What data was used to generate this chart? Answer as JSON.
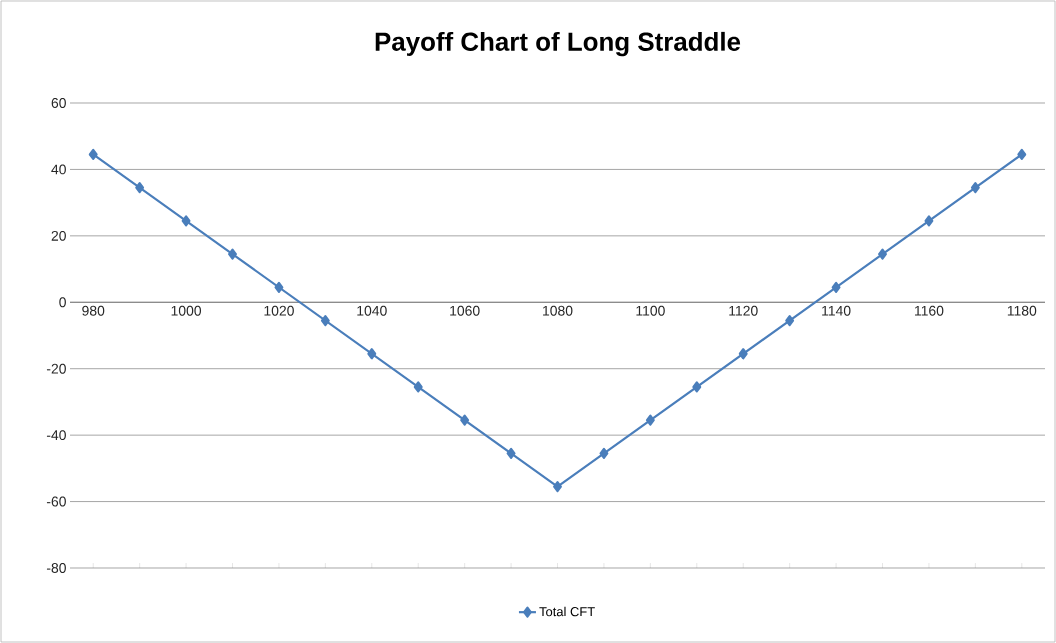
{
  "chart_data": {
    "type": "line",
    "title": "Payoff Chart of Long Straddle",
    "categories": [
      "980",
      null,
      "1000",
      null,
      "1020",
      null,
      "1040",
      null,
      "1060",
      null,
      "1080",
      null,
      "1100",
      null,
      "1120",
      null,
      "1140",
      null,
      "1160",
      null,
      "1180"
    ],
    "series": [
      {
        "name": "Total CFT",
        "color": "#4a7ebb",
        "values": [
          44.5,
          34.5,
          24.5,
          14.5,
          4.5,
          -5.5,
          -15.5,
          -25.5,
          -35.5,
          -45.5,
          -55.5,
          -45.5,
          -35.5,
          -25.5,
          -15.5,
          -5.5,
          4.5,
          14.5,
          24.5,
          34.5,
          44.5
        ]
      }
    ],
    "ylim": [
      -80,
      60
    ],
    "yticks": [
      -80,
      -60,
      -40,
      -20,
      0,
      20,
      40,
      60
    ],
    "grid": "y",
    "legend": "bottom",
    "marker": "diamond",
    "line_style": "solid"
  }
}
